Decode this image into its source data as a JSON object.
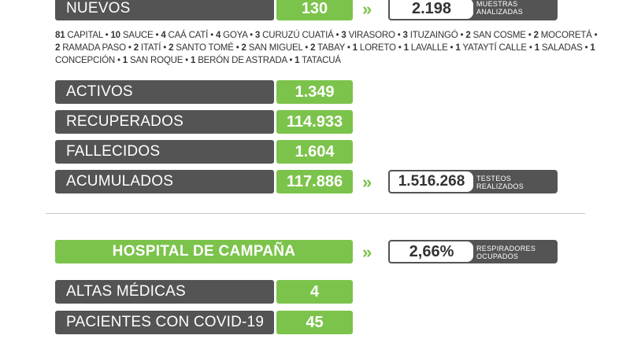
{
  "nuevos": {
    "label": "NUEVOS",
    "value": "130"
  },
  "muestras": {
    "value": "2.198",
    "label_line1": "MUESTRAS",
    "label_line2": "ANALIZADAS"
  },
  "localidades_texto": "81 CAPITAL • 10 SAUCE • 4 CAÁ CATÍ • 4 GOYA • 3 CURUZÚ CUATIÁ • 3 VIRASORO • 3 ITUZAINGÓ • 2 SAN COSME • 2 MOCORETÁ • 2 RAMADA PASO • 2 ITATÍ • 2 SANTO TOMÉ • 2 SAN MIGUEL • 2 TABAY • 1 LORETO • 1 LAVALLE • 1 YATAYTÍ CALLE • 1 SALADAS • 1 CONCEPCIÓN • 1 SAN ROQUE • 1 BERÓN DE ASTRADA • 1 TATACUÁ",
  "stats": [
    {
      "label": "ACTIVOS",
      "value": "1.349"
    },
    {
      "label": "RECUPERADOS",
      "value": "114.933"
    },
    {
      "label": "FALLECIDOS",
      "value": "1.604"
    },
    {
      "label": "ACUMULADOS",
      "value": "117.886"
    }
  ],
  "testeos": {
    "value": "1.516.268",
    "label_line1": "TESTEOS",
    "label_line2": "REALIZADOS"
  },
  "hospital": {
    "title": "HOSPITAL DE CAMPAÑA"
  },
  "respiradores": {
    "value": "2,66%",
    "label_line1": "RESPIRADORES",
    "label_line2": "OCUPADOS"
  },
  "hospital_stats": [
    {
      "label": "ALTAS MÉDICAS",
      "value": "4"
    },
    {
      "label": "PACIENTES CON COVID-19",
      "value": "45"
    }
  ],
  "colors": {
    "green": "#7cc34b",
    "dark_gray": "#545454",
    "white": "#ffffff"
  }
}
